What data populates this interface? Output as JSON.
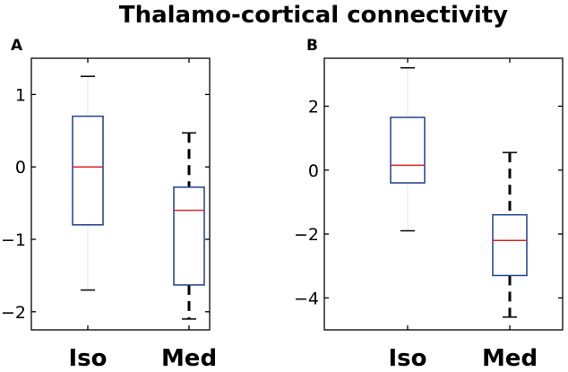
{
  "title": "Thalamo-cortical connectivity",
  "chart_data": [
    {
      "type": "box",
      "panel_label": "A",
      "categories": [
        "Iso",
        "Med"
      ],
      "ylim": [
        -2.25,
        1.5
      ],
      "yticks": [
        1,
        0,
        -1,
        -2
      ],
      "ytick_labels": [
        "1",
        "0",
        "−1",
        "−2"
      ],
      "grid": false,
      "boxes": [
        {
          "category": "Iso",
          "whisker_low": -1.7,
          "q1": -0.8,
          "median": 0.0,
          "q3": 0.7,
          "whisker_high": 1.25
        },
        {
          "category": "Med",
          "whisker_low": -2.1,
          "q1": -1.63,
          "median": -0.6,
          "q3": -0.28,
          "whisker_high": 0.47
        }
      ]
    },
    {
      "type": "box",
      "panel_label": "B",
      "categories": [
        "Iso",
        "Med"
      ],
      "ylim": [
        -5.0,
        3.5
      ],
      "yticks": [
        2,
        0,
        -2,
        -4
      ],
      "ytick_labels": [
        "2",
        "0",
        "−2",
        "−4"
      ],
      "grid": false,
      "boxes": [
        {
          "category": "Iso",
          "whisker_low": -1.9,
          "q1": -0.4,
          "median": 0.15,
          "q3": 1.65,
          "whisker_high": 3.2
        },
        {
          "category": "Med",
          "whisker_low": -4.6,
          "q1": -3.3,
          "median": -2.2,
          "q3": -1.4,
          "whisker_high": 0.55
        }
      ]
    }
  ]
}
